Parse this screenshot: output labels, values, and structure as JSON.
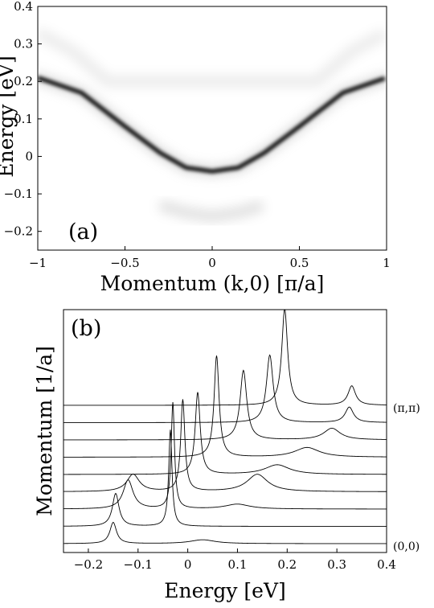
{
  "chart_data": [
    {
      "panel": "(a)",
      "type": "heatmap",
      "xlabel": "Momentum (k,0) [π/a]",
      "ylabel": "Energy [eV]",
      "xlim": [
        -1,
        1
      ],
      "ylim": [
        -0.25,
        0.4
      ],
      "xticks": [
        "−1",
        "−0.5",
        "0",
        "0.5",
        "1"
      ],
      "yticks": [
        "−0.2",
        "−0.1",
        "0",
        "0.1",
        "0.2",
        "0.3",
        "0.4"
      ],
      "colormap": "white-to-black (grayscale)",
      "bands": [
        {
          "role": "main dispersion",
          "k": [
            -1,
            -0.75,
            -0.5,
            -0.3,
            -0.15,
            0,
            0.15,
            0.3,
            0.5,
            0.75,
            1
          ],
          "energy": [
            0.21,
            0.17,
            0.08,
            0.01,
            -0.03,
            -0.04,
            -0.03,
            0.01,
            0.08,
            0.17,
            0.21
          ],
          "intensity": 1.0
        },
        {
          "role": "upper shadow",
          "k": [
            -1,
            -0.8,
            -0.6,
            0.6,
            0.8,
            1
          ],
          "energy": [
            0.33,
            0.28,
            0.2,
            0.2,
            0.28,
            0.33
          ],
          "intensity": 0.08
        },
        {
          "role": "lower shadow",
          "k": [
            -0.3,
            -0.15,
            0,
            0.15,
            0.3
          ],
          "energy": [
            -0.13,
            -0.15,
            -0.16,
            -0.15,
            -0.13
          ],
          "intensity": 0.12
        }
      ]
    },
    {
      "panel": "(b)",
      "type": "line",
      "xlabel": "Energy [eV]",
      "ylabel": "Momentum [1/a]",
      "xlim": [
        -0.25,
        0.4
      ],
      "xticks": [
        "−0.2",
        "−0.1",
        "0",
        "0.1",
        "0.2",
        "0.3",
        "0.4"
      ],
      "side_labels": {
        "top": "(π,π)",
        "bottom": "(0,0)"
      },
      "curves": [
        {
          "peaks": [
            {
              "energy": -0.15,
              "height": 0.22,
              "width": 0.008
            },
            {
              "energy": 0.03,
              "height": 0.04,
              "width": 0.03
            }
          ]
        },
        {
          "peaks": [
            {
              "energy": -0.145,
              "height": 0.34,
              "width": 0.008
            },
            {
              "energy": -0.035,
              "height": 1.0,
              "width": 0.004
            }
          ]
        },
        {
          "peaks": [
            {
              "energy": -0.12,
              "height": 0.3,
              "width": 0.012
            },
            {
              "energy": -0.03,
              "height": 1.1,
              "width": 0.004
            },
            {
              "energy": 0.1,
              "height": 0.05,
              "width": 0.03
            }
          ]
        },
        {
          "peaks": [
            {
              "energy": -0.11,
              "height": 0.18,
              "width": 0.015
            },
            {
              "energy": -0.01,
              "height": 0.95,
              "width": 0.005
            },
            {
              "energy": 0.14,
              "height": 0.18,
              "width": 0.025
            }
          ]
        },
        {
          "peaks": [
            {
              "energy": 0.02,
              "height": 0.85,
              "width": 0.006
            },
            {
              "energy": 0.18,
              "height": 0.1,
              "width": 0.03
            }
          ]
        },
        {
          "peaks": [
            {
              "energy": 0.058,
              "height": 1.05,
              "width": 0.006
            },
            {
              "energy": 0.24,
              "height": 0.1,
              "width": 0.03
            }
          ]
        },
        {
          "peaks": [
            {
              "energy": 0.112,
              "height": 0.72,
              "width": 0.008
            },
            {
              "energy": 0.29,
              "height": 0.12,
              "width": 0.02
            }
          ]
        },
        {
          "peaks": [
            {
              "energy": 0.165,
              "height": 0.7,
              "width": 0.008
            },
            {
              "energy": 0.325,
              "height": 0.16,
              "width": 0.01
            }
          ]
        },
        {
          "peaks": [
            {
              "energy": 0.195,
              "height": 1.0,
              "width": 0.007
            },
            {
              "energy": 0.33,
              "height": 0.2,
              "width": 0.009
            }
          ]
        }
      ]
    }
  ]
}
